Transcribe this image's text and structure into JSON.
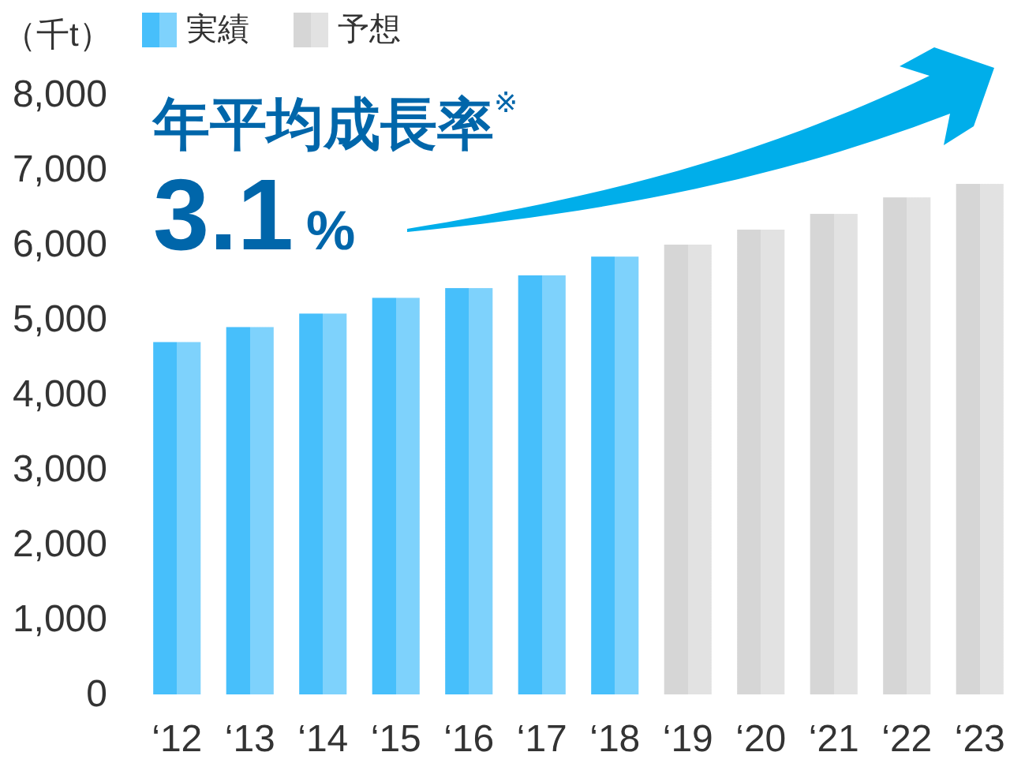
{
  "chart_data": {
    "type": "bar",
    "ylabel": "（千t）",
    "categories": [
      "‘12",
      "‘13",
      "‘14",
      "‘15",
      "‘16",
      "‘17",
      "‘18",
      "‘19",
      "‘20",
      "‘21",
      "‘22",
      "‘23"
    ],
    "series": [
      {
        "name": "実績",
        "color": "#47bffb",
        "values": [
          4700,
          4900,
          5080,
          5290,
          5420,
          5590,
          5840,
          null,
          null,
          null,
          null,
          null
        ]
      },
      {
        "name": "予想",
        "color": "#d6d6d6",
        "values": [
          null,
          null,
          null,
          null,
          null,
          null,
          null,
          6000,
          6200,
          6410,
          6630,
          6810
        ]
      }
    ],
    "ylim": [
      0,
      8000
    ],
    "yticks": [
      {
        "value": 0,
        "label": "0"
      },
      {
        "value": 1000,
        "label": "1,000"
      },
      {
        "value": 2000,
        "label": "2,000"
      },
      {
        "value": 3000,
        "label": "3,000"
      },
      {
        "value": 4000,
        "label": "4,000"
      },
      {
        "value": 5000,
        "label": "5,000"
      },
      {
        "value": 6000,
        "label": "6,000"
      },
      {
        "value": 7000,
        "label": "7,000"
      },
      {
        "value": 8000,
        "label": "8,000"
      }
    ],
    "annotations": [
      "年平均成長率$^{※}$",
      "3.1%"
    ],
    "legend": "top left",
    "grid": false
  }
}
